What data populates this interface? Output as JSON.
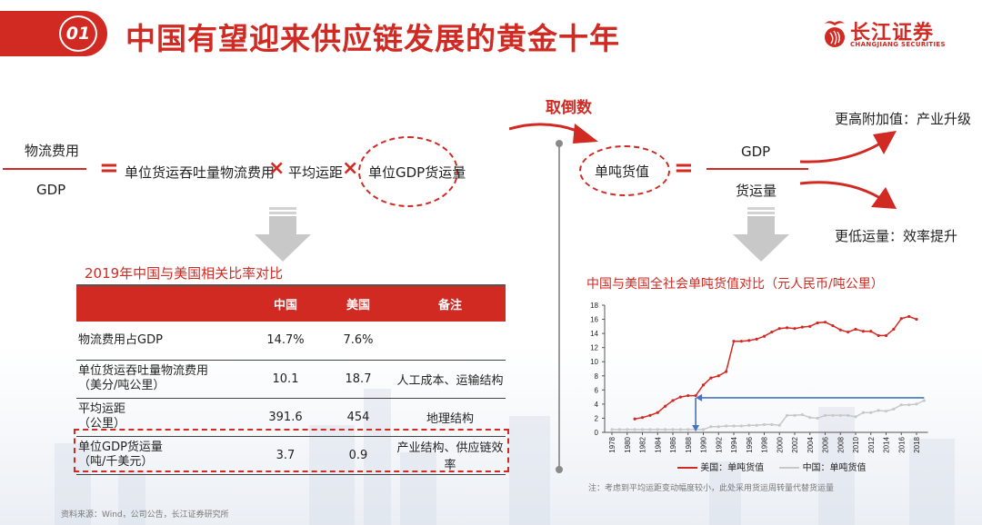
{
  "header": {
    "section_number": "01",
    "title": "中国有望迎来供应链发展的黄金十年",
    "logo": {
      "cn": "长江证券",
      "en": "CHANGJIANG SECURITIES"
    }
  },
  "formula_left": {
    "numerator": "物流费用",
    "denominator": "GDP",
    "equals": "=",
    "term1": "单位货运吞吐量物流费用",
    "times1": "×",
    "term2": "平均运距",
    "times2": "×",
    "term3_highlighted": "单位GDP货运量"
  },
  "inverse_label": "取倒数",
  "formula_right": {
    "term_highlighted": "单吨货值",
    "equals": "=",
    "numerator": "GDP",
    "denominator": "货运量",
    "outcome_up": "更高附加值：产业升级",
    "outcome_down": "更低运量：效率提升"
  },
  "table": {
    "title": "2019年中国与美国相关比率对比",
    "columns": [
      "",
      "中国",
      "美国",
      "备注"
    ],
    "rows": [
      {
        "metric": "物流费用占GDP",
        "unit": "",
        "china": "14.7%",
        "usa": "7.6%",
        "note": ""
      },
      {
        "metric": "单位货运吞吐量物流费用",
        "unit": "（美分/吨公里）",
        "china": "10.1",
        "usa": "18.7",
        "note": "人工成本、运输结构"
      },
      {
        "metric": "平均运距",
        "unit": "（公里）",
        "china": "391.6",
        "usa": "454",
        "note": "地理结构"
      },
      {
        "metric": "单位GDP货运量",
        "unit": "（吨/千美元）",
        "china": "3.7",
        "usa": "0.9",
        "note": "产业结构、供应链效率",
        "highlighted": true
      }
    ]
  },
  "chart_title": "中国与美国全社会单吨货值对比（元人民币/吨公里）",
  "chart_note": "注：考虑到平均运距变动幅度较小，此处采用货运周转量代替货运量",
  "source": "资料来源：Wind，公司公告，长江证券研究所",
  "colors": {
    "accent_red": "#d12a23",
    "china_series": "#c8c8c8",
    "usa_series": "#d12a23",
    "annotation_blue": "#4472c4",
    "arrow_gray": "#c8c8c8"
  },
  "chart_data": {
    "type": "line",
    "title": "中国与美国全社会单吨货值对比（元人民币/吨公里）",
    "xlabel": "",
    "ylabel": "",
    "ylim": [
      0,
      18
    ],
    "yticks": [
      0,
      2,
      4,
      6,
      8,
      10,
      12,
      14,
      16,
      18
    ],
    "xticks": [
      "1978",
      "1980",
      "1982",
      "1984",
      "1986",
      "1988",
      "1990",
      "1992",
      "1994",
      "1996",
      "1998",
      "2000",
      "2002",
      "2004",
      "2006",
      "2008",
      "2010",
      "2012",
      "2014",
      "2016",
      "2018"
    ],
    "grid": false,
    "legend_position": "bottom",
    "x": [
      1978,
      1979,
      1980,
      1981,
      1982,
      1983,
      1984,
      1985,
      1986,
      1987,
      1988,
      1989,
      1990,
      1991,
      1992,
      1993,
      1994,
      1995,
      1996,
      1997,
      1998,
      1999,
      2000,
      2001,
      2002,
      2003,
      2004,
      2005,
      2006,
      2007,
      2008,
      2009,
      2010,
      2011,
      2012,
      2013,
      2014,
      2015,
      2016,
      2017,
      2018,
      2019
    ],
    "series": [
      {
        "name": "美国：单吨货值",
        "color": "#d12a23",
        "values": [
          null,
          null,
          null,
          1.9,
          2.1,
          2.4,
          2.8,
          3.7,
          4.5,
          5.0,
          5.2,
          5.2,
          6.7,
          7.7,
          8.0,
          8.6,
          12.9,
          12.9,
          13.0,
          13.2,
          13.6,
          14.2,
          14.7,
          14.8,
          14.7,
          14.9,
          15.0,
          15.5,
          15.6,
          15.1,
          14.5,
          14.2,
          14.6,
          14.3,
          14.3,
          13.7,
          13.7,
          14.6,
          16.1,
          16.4,
          16.0,
          null
        ]
      },
      {
        "name": "中国：单吨货值",
        "color": "#c8c8c8",
        "values": [
          0.4,
          0.4,
          0.4,
          0.4,
          0.4,
          0.4,
          0.4,
          0.4,
          0.4,
          0.4,
          0.4,
          0.4,
          0.4,
          0.8,
          0.8,
          0.9,
          0.9,
          0.9,
          1.0,
          1.0,
          1.1,
          1.1,
          1.0,
          2.4,
          2.4,
          2.5,
          2.1,
          2.0,
          2.4,
          2.4,
          2.4,
          2.4,
          2.2,
          2.8,
          2.8,
          3.1,
          3.0,
          3.3,
          3.9,
          3.9,
          4.0,
          4.5
        ]
      }
    ],
    "annotations": [
      {
        "type": "arrow",
        "description": "horizontal blue arrow from China 2019 level (~4.9) pointing left to US 1989",
        "color": "#4472c4"
      },
      {
        "type": "arrow",
        "description": "vertical blue arrow from US 1989 down to x-axis",
        "color": "#4472c4"
      }
    ]
  }
}
